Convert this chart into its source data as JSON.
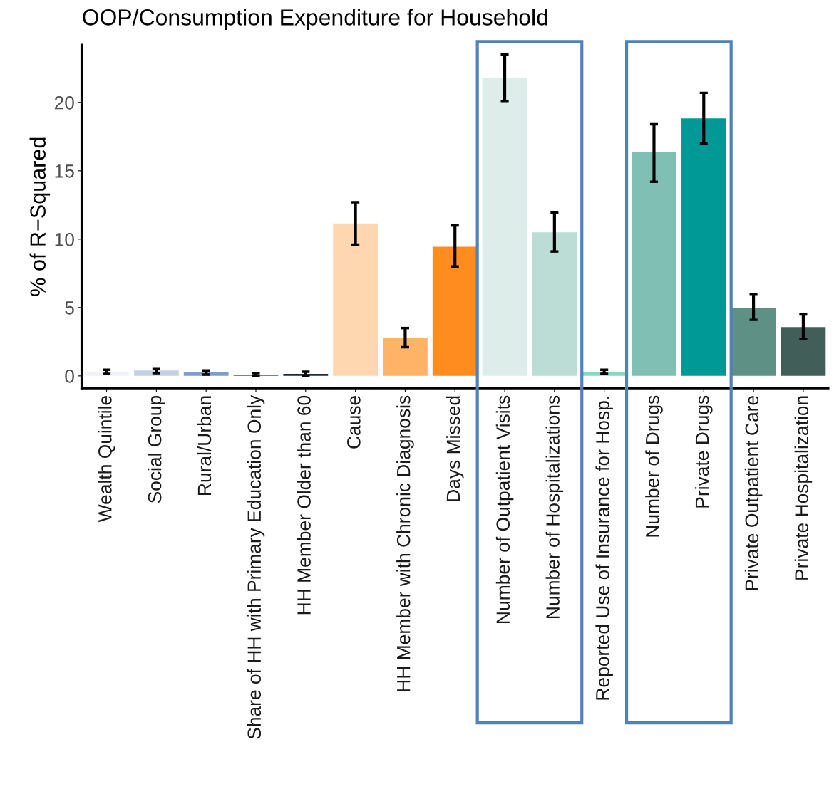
{
  "chart_data": {
    "type": "bar",
    "title": "OOP/Consumption Expenditure for Household",
    "ylabel": "% of R−Squared",
    "categories": [
      "Wealth Quintile",
      "Social Group",
      "Rural/Urban",
      "Share of HH with Primary Education Only",
      "HH Member Older than 60",
      "Cause",
      "HH Member with Chronic Diagnosis",
      "Days Missed",
      "Number of Outpatient Visits",
      "Number of Hospitalizations",
      "Reported Use of Insurance for Hosp.",
      "Number of Drugs",
      "Private Drugs",
      "Private Outpatient Care",
      "Private Hospitalization"
    ],
    "values": [
      0.3,
      0.4,
      0.25,
      0.1,
      0.15,
      11.15,
      2.77,
      9.44,
      21.76,
      10.5,
      0.3,
      16.37,
      18.83,
      4.96,
      3.57
    ],
    "errors": [
      0.15,
      [
        0.2,
        0.5
      ],
      0.15,
      0.1,
      0.15,
      [
        9.6,
        12.7
      ],
      [
        2.1,
        3.5
      ],
      [
        8.0,
        11.0
      ],
      [
        20.1,
        23.5
      ],
      [
        9.1,
        11.95
      ],
      0.15,
      [
        14.2,
        18.4
      ],
      [
        17.0,
        20.7
      ],
      [
        4.1,
        6.0
      ],
      [
        2.7,
        4.5
      ]
    ],
    "colors": [
      "#eef1f8",
      "#c5d0e6",
      "#7f9ccb",
      "#3d5a99",
      "#1b2a47",
      "#fed7b1",
      "#ffb366",
      "#ff8c1f",
      "#ddeeea",
      "#bcddd6",
      "#8ad6c6",
      "#80bfb3",
      "#009995",
      "#5f9085",
      "#415f58"
    ],
    "ylim": [
      -0.9,
      24.2
    ],
    "yticks": [
      0,
      5,
      10,
      15,
      20
    ],
    "grid": false
  }
}
